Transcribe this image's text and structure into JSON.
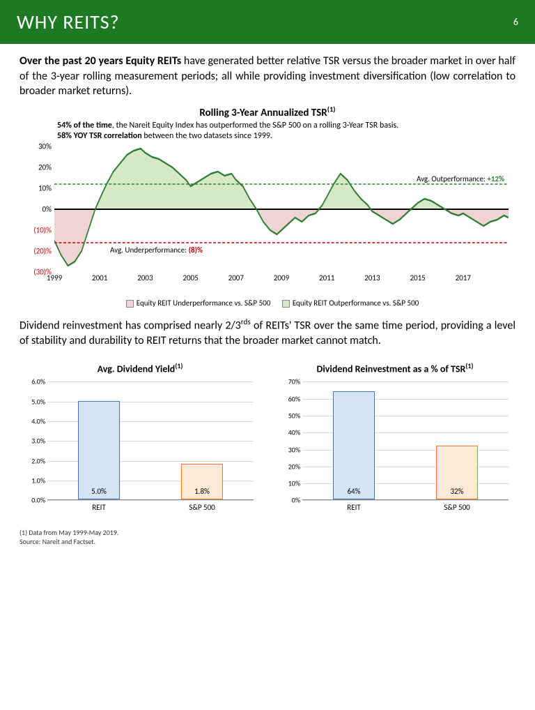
{
  "header": {
    "title": "WHY REITS?",
    "page": "6"
  },
  "para1": {
    "bold": "Over the past 20 years Equity REITs",
    "rest": " have generated better relative TSR versus the broader market in over half of the 3-year rolling measurement periods; all while providing investment diversification (low correlation to broader market returns)."
  },
  "linechart": {
    "title": "Rolling 3-Year Annualized TSR",
    "sup": "(1)",
    "sub_b1": "54% of the time",
    "sub_r1": ", the Nareit Equity Index has outperformed  the S&P 500 on a rolling 3-Year TSR basis.",
    "sub_b2": "58% YOY TSR correlation",
    "sub_r2": " between the two datasets since 1999.",
    "ylim": [
      -30,
      30
    ],
    "yticks": [
      {
        "v": 30,
        "label": "30%",
        "neg": false
      },
      {
        "v": 20,
        "label": "20%",
        "neg": false
      },
      {
        "v": 10,
        "label": "10%",
        "neg": false
      },
      {
        "v": 0,
        "label": "0%",
        "neg": false
      },
      {
        "v": -10,
        "label": "(10)%",
        "neg": true
      },
      {
        "v": -20,
        "label": "(20)%",
        "neg": true
      },
      {
        "v": -30,
        "label": "(30)%",
        "neg": true
      }
    ],
    "xlim": [
      1999,
      2019
    ],
    "xticks": [
      1999,
      2001,
      2003,
      2005,
      2007,
      2009,
      2011,
      2013,
      2015,
      2017
    ],
    "avg_out": 12,
    "avg_out_label_pre": "Avg. Outperformance: ",
    "avg_out_label_val": "+12%",
    "avg_under": -8,
    "avg_under_label_pre": "Avg. Underperformance:  ",
    "avg_under_label_val": "(8)%",
    "line_color": "#2e7d32",
    "out_fill": "#d6e9c6",
    "under_fill": "#f0d4d4",
    "avg_out_color": "#2e7d32",
    "avg_under_color": "#c00000",
    "series": [
      [
        1999.0,
        -15
      ],
      [
        1999.3,
        -22
      ],
      [
        1999.6,
        -27
      ],
      [
        1999.9,
        -25
      ],
      [
        2000.2,
        -20
      ],
      [
        2000.5,
        -10
      ],
      [
        2000.8,
        0
      ],
      [
        2001.0,
        5
      ],
      [
        2001.3,
        12
      ],
      [
        2001.6,
        18
      ],
      [
        2001.9,
        22
      ],
      [
        2002.2,
        26
      ],
      [
        2002.5,
        28
      ],
      [
        2002.8,
        29
      ],
      [
        2003.0,
        27
      ],
      [
        2003.3,
        25
      ],
      [
        2003.6,
        24
      ],
      [
        2003.9,
        22
      ],
      [
        2004.2,
        20
      ],
      [
        2004.5,
        17
      ],
      [
        2004.8,
        14
      ],
      [
        2005.0,
        11
      ],
      [
        2005.3,
        13
      ],
      [
        2005.6,
        15
      ],
      [
        2005.9,
        17
      ],
      [
        2006.2,
        18
      ],
      [
        2006.5,
        16
      ],
      [
        2006.8,
        17
      ],
      [
        2007.0,
        14
      ],
      [
        2007.3,
        11
      ],
      [
        2007.6,
        5
      ],
      [
        2007.9,
        0
      ],
      [
        2008.2,
        -6
      ],
      [
        2008.5,
        -10
      ],
      [
        2008.8,
        -12
      ],
      [
        2009.0,
        -10
      ],
      [
        2009.3,
        -7
      ],
      [
        2009.6,
        -4
      ],
      [
        2009.9,
        -6
      ],
      [
        2010.2,
        -3
      ],
      [
        2010.5,
        -2
      ],
      [
        2010.8,
        2
      ],
      [
        2011.0,
        6
      ],
      [
        2011.3,
        12
      ],
      [
        2011.6,
        17
      ],
      [
        2011.9,
        14
      ],
      [
        2012.2,
        9
      ],
      [
        2012.5,
        5
      ],
      [
        2012.8,
        2
      ],
      [
        2013.0,
        -1
      ],
      [
        2013.3,
        -3
      ],
      [
        2013.6,
        -5
      ],
      [
        2013.9,
        -7
      ],
      [
        2014.2,
        -5
      ],
      [
        2014.5,
        -2
      ],
      [
        2014.8,
        1
      ],
      [
        2015.0,
        3
      ],
      [
        2015.3,
        5
      ],
      [
        2015.6,
        4
      ],
      [
        2015.9,
        2
      ],
      [
        2016.2,
        0
      ],
      [
        2016.5,
        -2
      ],
      [
        2016.8,
        -3
      ],
      [
        2017.0,
        -2
      ],
      [
        2017.3,
        -4
      ],
      [
        2017.6,
        -6
      ],
      [
        2017.9,
        -8
      ],
      [
        2018.2,
        -6
      ],
      [
        2018.5,
        -5
      ],
      [
        2018.8,
        -3
      ],
      [
        2019.0,
        -4
      ]
    ],
    "legend_under": "Equity REIT Underperformance vs. S&P 500",
    "legend_out": "Equity REIT Outperformance vs. S&P 500"
  },
  "para2_pre": "Dividend reinvestment has comprised nearly 2/3",
  "para2_sup": "rds",
  "para2_post": " of REITs' TSR over the same time period, providing a level of stability and durability to REIT returns that the broader market cannot match.",
  "bar1": {
    "title": "Avg. Dividend Yield",
    "sup": "(1)",
    "ymax": 6.0,
    "ystep": 1.0,
    "fmt": "pct1",
    "cats": [
      "REIT",
      "S&P 500"
    ],
    "vals": [
      5.0,
      1.8
    ],
    "val_labels": [
      "5.0%",
      "1.8%"
    ],
    "colors": [
      "#d6e4f5",
      "#fce9d6"
    ],
    "borders": [
      "#4472c4",
      "#ed7d31"
    ]
  },
  "bar2": {
    "title": "Dividend Reinvestment as a % of TSR",
    "sup": "(1)",
    "ymax": 70,
    "ystep": 10,
    "fmt": "pct0",
    "cats": [
      "REIT",
      "S&P 500"
    ],
    "vals": [
      64,
      32
    ],
    "val_labels": [
      "64%",
      "32%"
    ],
    "colors": [
      "#d6e4f5",
      "#fce9d6"
    ],
    "borders": [
      "#4472c4",
      "#ed7d31"
    ]
  },
  "footnote1": "(1)   Data from May 1999-May 2019.",
  "footnote2": "Source: Nareit and Factset."
}
